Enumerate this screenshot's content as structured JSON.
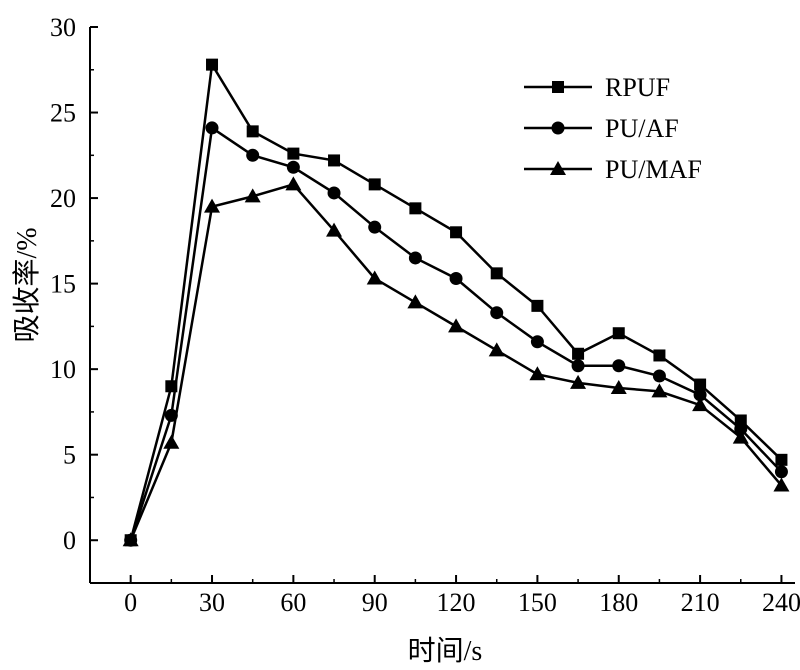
{
  "chart_data": {
    "type": "line",
    "title": "",
    "xlabel": "时间/s",
    "ylabel": "吸收率/%",
    "xlim": [
      -15,
      245
    ],
    "ylim": [
      -2.5,
      30
    ],
    "x_ticks": [
      0,
      30,
      60,
      90,
      120,
      150,
      180,
      210,
      240
    ],
    "y_ticks": [
      0,
      5,
      10,
      15,
      20,
      25,
      30
    ],
    "x": [
      0,
      15,
      30,
      45,
      60,
      75,
      90,
      105,
      120,
      135,
      150,
      165,
      180,
      195,
      210,
      225,
      240
    ],
    "legend_position": "top-right",
    "series": [
      {
        "name": "RPUF",
        "marker": "square",
        "values": [
          0,
          9.0,
          27.8,
          23.9,
          22.6,
          22.2,
          20.8,
          19.4,
          18.0,
          15.6,
          13.7,
          10.9,
          12.1,
          10.8,
          9.1,
          7.0,
          4.7
        ]
      },
      {
        "name": "PU/AF",
        "marker": "circle",
        "values": [
          0,
          7.3,
          24.1,
          22.5,
          21.8,
          20.3,
          18.3,
          16.5,
          15.3,
          13.3,
          11.6,
          10.2,
          10.2,
          9.6,
          8.5,
          6.5,
          4.0
        ]
      },
      {
        "name": "PU/MAF",
        "marker": "triangle",
        "values": [
          0,
          5.7,
          19.5,
          20.1,
          20.8,
          18.1,
          15.3,
          13.9,
          12.5,
          11.1,
          9.7,
          9.2,
          8.9,
          8.7,
          7.9,
          6.0,
          3.2
        ]
      }
    ]
  }
}
